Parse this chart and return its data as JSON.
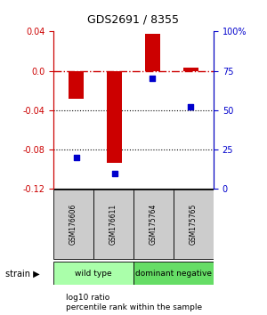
{
  "title": "GDS2691 / 8355",
  "samples": [
    "GSM176606",
    "GSM176611",
    "GSM175764",
    "GSM175765"
  ],
  "log10_ratio": [
    -0.028,
    -0.093,
    0.038,
    0.003
  ],
  "percentile_rank": [
    20,
    10,
    70,
    52
  ],
  "groups": [
    {
      "label": "wild type",
      "samples": [
        0,
        1
      ],
      "color": "#aaffaa"
    },
    {
      "label": "dominant negative",
      "samples": [
        2,
        3
      ],
      "color": "#66dd66"
    }
  ],
  "ylim_left": [
    -0.12,
    0.04
  ],
  "ylim_right": [
    0,
    100
  ],
  "yticks_left": [
    -0.12,
    -0.08,
    -0.04,
    0.0,
    0.04
  ],
  "yticks_right": [
    0,
    25,
    50,
    75,
    100
  ],
  "bar_color": "#cc0000",
  "dot_color": "#0000cc",
  "hline_color": "#cc0000",
  "hline_style": "-.",
  "dotline_color": "#000000",
  "dotline_style": ":",
  "background_color": "#ffffff",
  "plot_bg_color": "#ffffff",
  "label_log10": "log10 ratio",
  "label_pct": "percentile rank within the sample",
  "strain_label": "strain",
  "bar_width": 0.4,
  "sample_box_color": "#cccccc",
  "group_colors": [
    "#aaffaa",
    "#66dd66"
  ]
}
